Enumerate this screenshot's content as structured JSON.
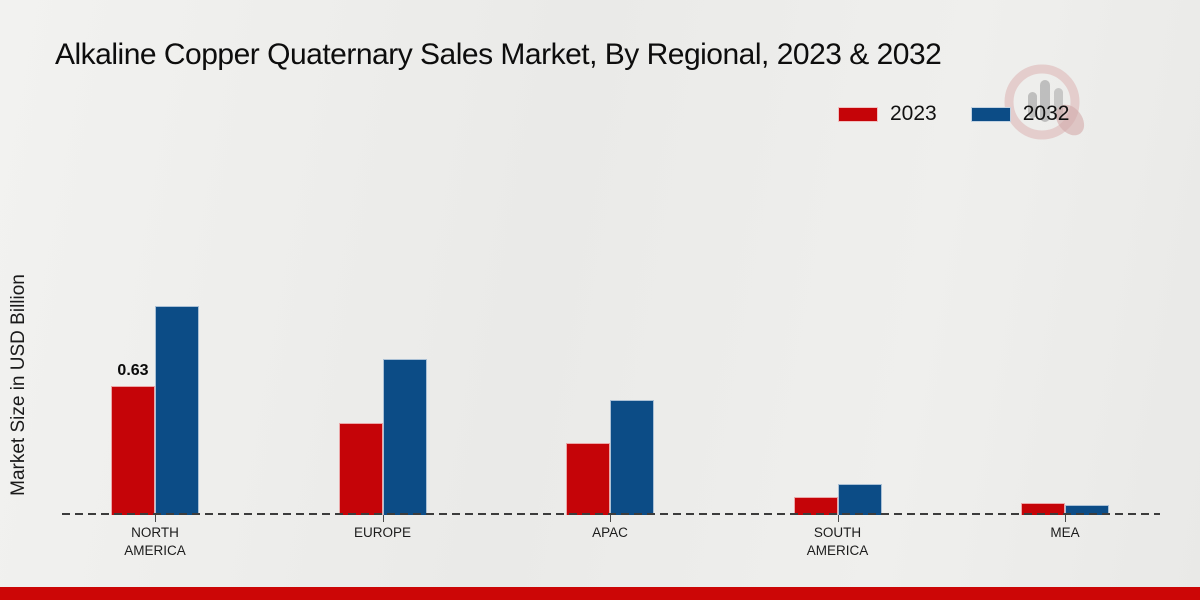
{
  "page": {
    "title": "Alkaline Copper Quaternary Sales Market, By Regional, 2023 & 2032",
    "y_axis_label": "Market Size in USD Billion",
    "footer_bar_color": "#cc0606",
    "background_color": "#ededeb"
  },
  "legend": {
    "position": "top-right",
    "items": [
      {
        "label": "2023",
        "color": "#c50408"
      },
      {
        "label": "2032",
        "color": "#0c4c86"
      }
    ]
  },
  "watermark": {
    "name": "market-research-logo",
    "ring_color": "#d9a8a8",
    "bars_color": "#a9a9a9",
    "drop_color": "#cf9e9e"
  },
  "chart_data": {
    "type": "bar",
    "title": "Alkaline Copper Quaternary Sales Market, By Regional, 2023 & 2032",
    "xlabel": "",
    "ylabel": "Market Size in USD Billion",
    "unit": "USD Billion",
    "categories": [
      "NORTH\nAMERICA",
      "EUROPE",
      "APAC",
      "SOUTH\nAMERICA",
      "MEA"
    ],
    "series": [
      {
        "name": "2023",
        "color": "#c50408",
        "values": [
          0.63,
          0.45,
          0.35,
          0.09,
          0.06
        ],
        "labels": [
          "0.63",
          "",
          "",
          "",
          ""
        ]
      },
      {
        "name": "2032",
        "color": "#0c4c86",
        "values": [
          1.02,
          0.76,
          0.56,
          0.15,
          0.05
        ],
        "labels": [
          "",
          "",
          "",
          "",
          ""
        ]
      }
    ],
    "ylim": [
      0,
      1.25
    ],
    "grid": false,
    "baseline_style": "dashed",
    "legend_position": "top-right"
  }
}
